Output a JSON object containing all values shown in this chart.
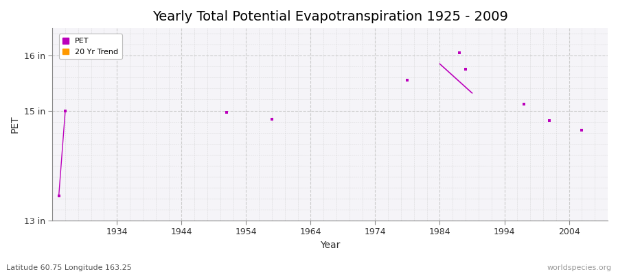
{
  "title": "Yearly Total Potential Evapotranspiration 1925 - 2009",
  "xlabel": "Year",
  "ylabel": "PET",
  "xlim": [
    1924,
    2010
  ],
  "ylim": [
    13.0,
    16.5
  ],
  "yticks": [
    13,
    15,
    16
  ],
  "ytick_labels": [
    "13 in",
    "15 in",
    "16 in"
  ],
  "xticks": [
    1934,
    1944,
    1954,
    1964,
    1974,
    1984,
    1994,
    2004
  ],
  "bg_color": "#ffffff",
  "plot_bg_color": "#f5f4f8",
  "grid_color": "#cccccc",
  "title_fontsize": 14,
  "pet_color": "#bb00bb",
  "trend_color": "#ff9900",
  "trend_line_color": "#bb00bb",
  "pet_points_x": [
    1925,
    1926,
    1951,
    1958,
    1979,
    1987,
    1988,
    1997,
    2001,
    2006
  ],
  "pet_points_y": [
    13.45,
    15.0,
    14.97,
    14.85,
    15.55,
    16.05,
    15.75,
    15.12,
    14.82,
    14.65
  ],
  "trend_line_x": [
    1984,
    1989
  ],
  "trend_line_y": [
    15.85,
    15.32
  ],
  "pet_line_x": [
    1925,
    1926
  ],
  "pet_line_y": [
    13.45,
    15.0
  ],
  "footnote_left": "Latitude 60.75 Longitude 163.25",
  "footnote_right": "worldspecies.org"
}
